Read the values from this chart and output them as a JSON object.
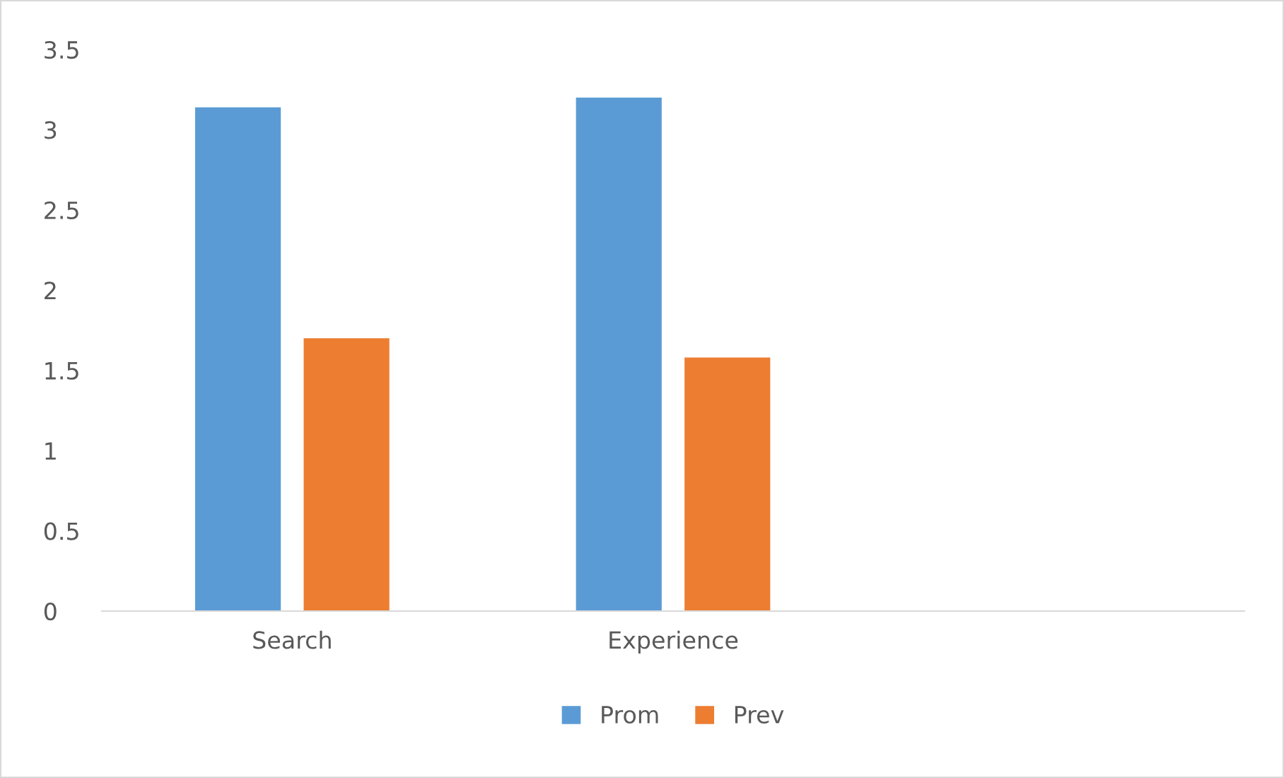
{
  "chart_data": {
    "type": "bar",
    "categories": [
      "Search",
      "Experience",
      null
    ],
    "series": [
      {
        "name": "Prom",
        "color": "#5b9bd5",
        "values": [
          3.14,
          3.2,
          null
        ]
      },
      {
        "name": "Prev",
        "color": "#ed7d31",
        "values": [
          1.7,
          1.58,
          null
        ]
      }
    ],
    "ylim": [
      0,
      3.5
    ],
    "yticks": [
      0,
      0.5,
      1,
      1.5,
      2,
      2.5,
      3,
      3.5
    ],
    "grid": false,
    "legend": "bottom"
  }
}
